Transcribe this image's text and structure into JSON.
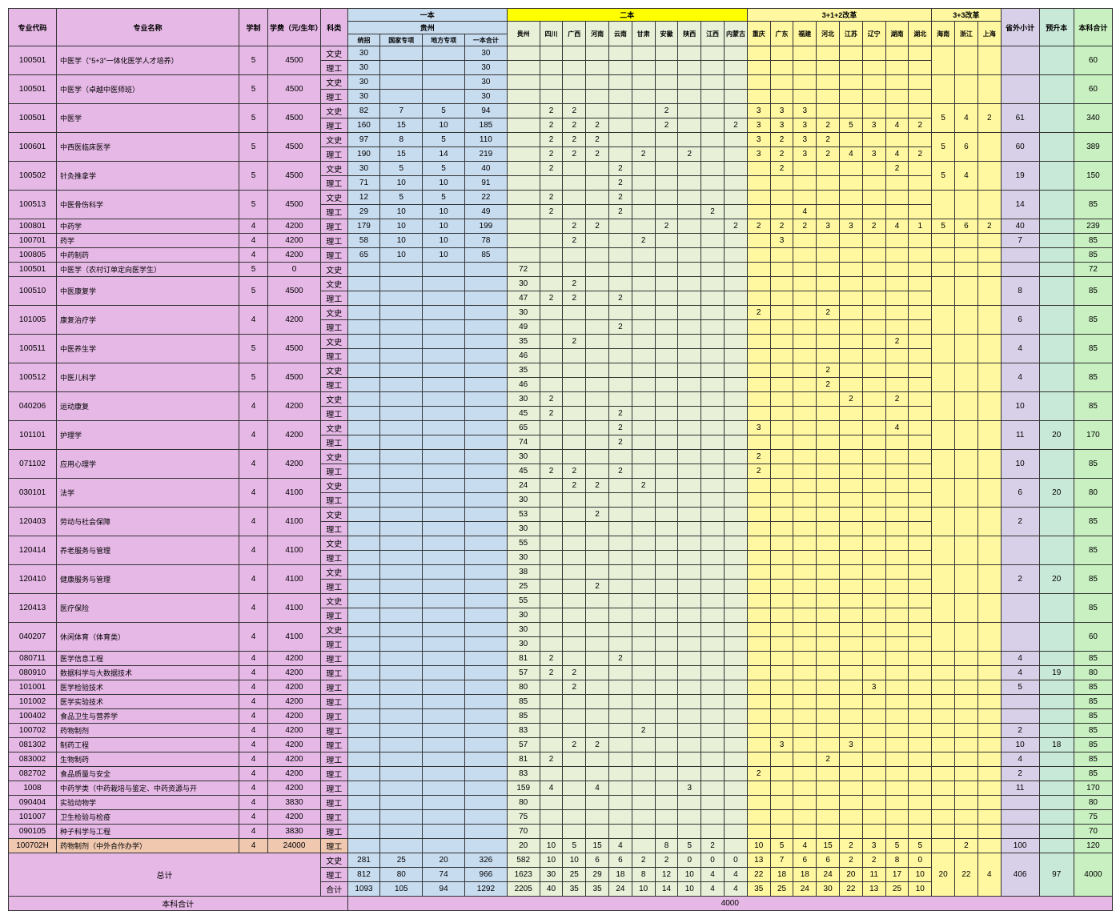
{
  "hdr": {
    "code": "专业代码",
    "name": "专业名称",
    "years": "学制",
    "fee": "学费（元/生年）",
    "sci": "科类",
    "g1": "一本",
    "g1gz": "贵州",
    "g1a": "统招",
    "g1b": "国家专项",
    "g1c": "地方专项",
    "g1d": "一本合计",
    "g2": "二本",
    "p1": "贵州",
    "p2": "四川",
    "p3": "广西",
    "p4": "河南",
    "p5": "云南",
    "p6": "甘肃",
    "p7": "安徽",
    "p8": "陕西",
    "p9": "江西",
    "p10": "内蒙古",
    "g3": "3+1+2改革",
    "r1": "重庆",
    "r2": "广东",
    "r3": "福建",
    "r4": "河北",
    "r5": "江苏",
    "r6": "辽宁",
    "r7": "湖南",
    "r8": "湖北",
    "g4": "3+3改革",
    "q1": "海南",
    "q2": "浙江",
    "q3": "上海",
    "subext": "省外小计",
    "upgrade": "预升本",
    "total": "本科合计",
    "wen": "文史",
    "li": "理工",
    "hj": "合计",
    "sum": "总计",
    "grand": "本科合计",
    "grandval": "4000"
  },
  "rows": [
    {
      "code": "100501",
      "name": "中医学（\"5+3\"一体化医学人才培养）",
      "yr": "5",
      "fee": "4500",
      "w": {
        "a": "30",
        "d": "30"
      },
      "l": {
        "a": "30",
        "d": "30"
      },
      "tot": "60"
    },
    {
      "code": "100501",
      "name": "中医学（卓越中医师班）",
      "yr": "5",
      "fee": "4500",
      "w": {
        "a": "30",
        "d": "30"
      },
      "l": {
        "a": "30",
        "d": "30"
      },
      "tot": "60"
    },
    {
      "code": "100501",
      "name": "中医学",
      "yr": "5",
      "fee": "4500",
      "w": {
        "a": "82",
        "b": "7",
        "c": "5",
        "d": "94",
        "p2": "2",
        "p3": "2",
        "p7": "2",
        "r1": "3",
        "r2": "3",
        "r3": "3"
      },
      "l": {
        "a": "160",
        "b": "15",
        "c": "10",
        "d": "185",
        "p2": "2",
        "p3": "2",
        "p4": "2",
        "p7": "2",
        "p10": "2",
        "r1": "3",
        "r2": "3",
        "r3": "3",
        "r4": "2",
        "r5": "5",
        "r6": "3",
        "r7": "4",
        "r8": "2"
      },
      "q1": "5",
      "q2": "4",
      "q3": "2",
      "sub": "61",
      "tot": "340"
    },
    {
      "code": "100601",
      "name": "中西医临床医学",
      "yr": "5",
      "fee": "4500",
      "w": {
        "a": "97",
        "b": "8",
        "c": "5",
        "d": "110",
        "p2": "2",
        "p3": "2",
        "p4": "2",
        "r1": "3",
        "r2": "2",
        "r3": "3",
        "r4": "2"
      },
      "l": {
        "a": "190",
        "b": "15",
        "c": "14",
        "d": "219",
        "p2": "2",
        "p3": "2",
        "p4": "2",
        "p6": "2",
        "p8": "2",
        "r1": "3",
        "r2": "2",
        "r3": "3",
        "r4": "2",
        "r5": "4",
        "r6": "3",
        "r7": "4",
        "r8": "2"
      },
      "q1": "5",
      "q2": "6",
      "sub": "60",
      "tot": "389"
    },
    {
      "code": "100502",
      "name": "针灸推拿学",
      "yr": "5",
      "fee": "4500",
      "w": {
        "a": "30",
        "b": "5",
        "c": "5",
        "d": "40",
        "p2": "2",
        "p5": "2",
        "r2": "2",
        "r7": "2"
      },
      "l": {
        "a": "71",
        "b": "10",
        "c": "10",
        "d": "91",
        "p5": "2"
      },
      "q1": "5",
      "q2": "4",
      "sub": "19",
      "tot": "150"
    },
    {
      "code": "100513",
      "name": "中医骨伤科学",
      "yr": "5",
      "fee": "4500",
      "w": {
        "a": "12",
        "b": "5",
        "c": "5",
        "d": "22",
        "p2": "2",
        "p5": "2"
      },
      "l": {
        "a": "29",
        "b": "10",
        "c": "10",
        "d": "49",
        "p2": "2",
        "p5": "2",
        "p9": "2",
        "r3": "4"
      },
      "sub": "14",
      "tot": "85"
    },
    {
      "code": "100801",
      "name": "中药学",
      "yr": "4",
      "fee": "4200",
      "single": true,
      "l": {
        "a": "179",
        "b": "10",
        "c": "10",
        "d": "199",
        "p3": "2",
        "p4": "2",
        "p7": "2",
        "p10": "2",
        "r1": "2",
        "r2": "2",
        "r3": "2",
        "r4": "3",
        "r5": "3",
        "r6": "2",
        "r7": "4",
        "r8": "1"
      },
      "q1": "5",
      "q2": "6",
      "q3": "2",
      "sub": "40",
      "tot": "239"
    },
    {
      "code": "100701",
      "name": "药学",
      "yr": "4",
      "fee": "4200",
      "single": true,
      "l": {
        "a": "58",
        "b": "10",
        "c": "10",
        "d": "78",
        "p3": "2",
        "p6": "2",
        "r2": "3"
      },
      "sub": "7",
      "tot": "85"
    },
    {
      "code": "100805",
      "name": "中药制药",
      "yr": "4",
      "fee": "4200",
      "single": true,
      "l": {
        "a": "65",
        "b": "10",
        "c": "10",
        "d": "85"
      },
      "tot": "85"
    },
    {
      "code": "100501",
      "name": "中医学（农村订单定向医学生）",
      "yr": "5",
      "fee": "0",
      "single": true,
      "wen": true,
      "w": {
        "p1": "72"
      },
      "tot": "72"
    },
    {
      "code": "100510",
      "name": "中医康复学",
      "yr": "5",
      "fee": "4500",
      "w": {
        "p1": "30",
        "p3": "2"
      },
      "l": {
        "p1": "47",
        "p2": "2",
        "p3": "2",
        "p5": "2"
      },
      "sub": "8",
      "tot": "85"
    },
    {
      "code": "101005",
      "name": "康复治疗学",
      "yr": "4",
      "fee": "4200",
      "w": {
        "p1": "30",
        "r1": "2",
        "r4": "2"
      },
      "l": {
        "p1": "49",
        "p5": "2"
      },
      "sub": "6",
      "tot": "85"
    },
    {
      "code": "100511",
      "name": "中医养生学",
      "yr": "5",
      "fee": "4500",
      "w": {
        "p1": "35",
        "p3": "2",
        "r7": "2"
      },
      "l": {
        "p1": "46"
      },
      "sub": "4",
      "tot": "85"
    },
    {
      "code": "100512",
      "name": "中医儿科学",
      "yr": "5",
      "fee": "4500",
      "w": {
        "p1": "35",
        "r4": "2"
      },
      "l": {
        "p1": "46",
        "r4": "2"
      },
      "sub": "4",
      "tot": "85"
    },
    {
      "code": "040206",
      "name": "运动康复",
      "yr": "4",
      "fee": "4200",
      "w": {
        "p1": "30",
        "p2": "2",
        "r5": "2",
        "r7": "2"
      },
      "l": {
        "p1": "45",
        "p2": "2",
        "p5": "2"
      },
      "sub": "10",
      "tot": "85"
    },
    {
      "code": "101101",
      "name": "护理学",
      "yr": "4",
      "fee": "4200",
      "w": {
        "p1": "65",
        "p5": "2",
        "r1": "3",
        "r7": "4"
      },
      "l": {
        "p1": "74",
        "p5": "2"
      },
      "sub": "11",
      "up": "20",
      "tot": "170"
    },
    {
      "code": "071102",
      "name": "应用心理学",
      "yr": "4",
      "fee": "4200",
      "w": {
        "p1": "30",
        "r1": "2"
      },
      "l": {
        "p1": "45",
        "p2": "2",
        "p3": "2",
        "p5": "2",
        "r1": "2"
      },
      "sub": "10",
      "tot": "85"
    },
    {
      "code": "030101",
      "name": "法学",
      "yr": "4",
      "fee": "4100",
      "w": {
        "p1": "24",
        "p3": "2",
        "p4": "2",
        "p6": "2"
      },
      "l": {
        "p1": "30"
      },
      "sub": "6",
      "up": "20",
      "tot": "80"
    },
    {
      "code": "120403",
      "name": "劳动与社会保障",
      "yr": "4",
      "fee": "4100",
      "w": {
        "p1": "53",
        "p4": "2"
      },
      "l": {
        "p1": "30"
      },
      "sub": "2",
      "tot": "85"
    },
    {
      "code": "120414",
      "name": "养老服务与管理",
      "yr": "4",
      "fee": "4100",
      "w": {
        "p1": "55"
      },
      "l": {
        "p1": "30"
      },
      "tot": "85"
    },
    {
      "code": "120410",
      "name": "健康服务与管理",
      "yr": "4",
      "fee": "4100",
      "w": {
        "p1": "38"
      },
      "l": {
        "p1": "25",
        "p4": "2"
      },
      "sub": "2",
      "up": "20",
      "tot": "85"
    },
    {
      "code": "120413",
      "name": "医疗保险",
      "yr": "4",
      "fee": "4100",
      "w": {
        "p1": "55"
      },
      "l": {
        "p1": "30"
      },
      "tot": "85"
    },
    {
      "code": "040207",
      "name": "休闲体育（体育类）",
      "yr": "4",
      "fee": "4100",
      "w": {
        "p1": "30"
      },
      "l": {
        "p1": "30"
      },
      "tot": "60"
    },
    {
      "code": "080711",
      "name": "医学信息工程",
      "yr": "4",
      "fee": "4200",
      "single": true,
      "l": {
        "p1": "81",
        "p2": "2",
        "p5": "2"
      },
      "sub": "4",
      "tot": "85"
    },
    {
      "code": "080910",
      "name": "数据科学与大数据技术",
      "yr": "4",
      "fee": "4200",
      "single": true,
      "l": {
        "p1": "57",
        "p2": "2",
        "p3": "2"
      },
      "sub": "4",
      "up": "19",
      "tot": "80"
    },
    {
      "code": "101001",
      "name": "医学检验技术",
      "yr": "4",
      "fee": "4200",
      "single": true,
      "l": {
        "p1": "80",
        "p3": "2",
        "r6": "3"
      },
      "sub": "5",
      "tot": "85"
    },
    {
      "code": "101002",
      "name": "医学实验技术",
      "yr": "4",
      "fee": "4200",
      "single": true,
      "l": {
        "p1": "85"
      },
      "tot": "85"
    },
    {
      "code": "100402",
      "name": "食品卫生与营养学",
      "yr": "4",
      "fee": "4200",
      "single": true,
      "l": {
        "p1": "85"
      },
      "tot": "85"
    },
    {
      "code": "100702",
      "name": "药物制剂",
      "yr": "4",
      "fee": "4200",
      "single": true,
      "l": {
        "p1": "83",
        "p6": "2"
      },
      "sub": "2",
      "tot": "85"
    },
    {
      "code": "081302",
      "name": "制药工程",
      "yr": "4",
      "fee": "4200",
      "single": true,
      "l": {
        "p1": "57",
        "p3": "2",
        "p4": "2",
        "r2": "3",
        "r5": "3"
      },
      "sub": "10",
      "up": "18",
      "tot": "85"
    },
    {
      "code": "083002",
      "name": "生物制药",
      "yr": "4",
      "fee": "4200",
      "single": true,
      "l": {
        "p1": "81",
        "p2": "2",
        "r4": "2"
      },
      "sub": "4",
      "tot": "85"
    },
    {
      "code": "082702",
      "name": "食品质量与安全",
      "yr": "4",
      "fee": "4200",
      "single": true,
      "l": {
        "p1": "83",
        "r1": "2"
      },
      "sub": "2",
      "tot": "85"
    },
    {
      "code": "1008",
      "name": "中药学类（中药栽培与鉴定、中药资源与开",
      "yr": "4",
      "fee": "4200",
      "single": true,
      "l": {
        "p1": "159",
        "p2": "4",
        "p4": "4",
        "p8": "3"
      },
      "sub": "11",
      "tot": "170"
    },
    {
      "code": "090404",
      "name": "实验动物学",
      "yr": "4",
      "fee": "3830",
      "single": true,
      "l": {
        "p1": "80"
      },
      "tot": "80"
    },
    {
      "code": "101007",
      "name": "卫生检验与检疫",
      "yr": "4",
      "fee": "4200",
      "single": true,
      "l": {
        "p1": "75"
      },
      "tot": "75"
    },
    {
      "code": "090105",
      "name": "种子科学与工程",
      "yr": "4",
      "fee": "3830",
      "single": true,
      "l": {
        "p1": "70"
      },
      "tot": "70"
    },
    {
      "code": "100702H",
      "name": "药物制剂（中外合作办学）",
      "yr": "4",
      "fee": "24000",
      "single": true,
      "salmon": true,
      "l": {
        "p1": "20",
        "p2": "10",
        "p3": "5",
        "p4": "15",
        "p5": "4",
        "p7": "8",
        "p8": "5",
        "p9": "2",
        "r1": "10",
        "r2": "5",
        "r3": "4",
        "r4": "15",
        "r5": "2",
        "r6": "3",
        "r7": "5",
        "r8": "5"
      },
      "q2": "2",
      "sub": "100",
      "tot": "120"
    }
  ],
  "totals": {
    "w": {
      "a": "281",
      "b": "25",
      "c": "20",
      "d": "326",
      "p1": "582",
      "p2": "10",
      "p3": "10",
      "p4": "6",
      "p5": "6",
      "p6": "2",
      "p7": "2",
      "p8": "0",
      "p9": "0",
      "p10": "0",
      "r1": "13",
      "r2": "7",
      "r3": "6",
      "r4": "6",
      "r5": "2",
      "r6": "2",
      "r7": "8",
      "r8": "0"
    },
    "l": {
      "a": "812",
      "b": "80",
      "c": "74",
      "d": "966",
      "p1": "1623",
      "p2": "30",
      "p3": "25",
      "p4": "29",
      "p5": "18",
      "p6": "8",
      "p7": "12",
      "p8": "10",
      "p9": "4",
      "p10": "4",
      "r1": "22",
      "r2": "18",
      "r3": "18",
      "r4": "24",
      "r5": "20",
      "r6": "11",
      "r7": "17",
      "r8": "10"
    },
    "h": {
      "a": "1093",
      "b": "105",
      "c": "94",
      "d": "1292",
      "p1": "2205",
      "p2": "40",
      "p3": "35",
      "p4": "35",
      "p5": "24",
      "p6": "10",
      "p7": "14",
      "p8": "10",
      "p9": "4",
      "p10": "4",
      "r1": "35",
      "r2": "25",
      "r3": "24",
      "r4": "30",
      "r5": "22",
      "r6": "13",
      "r7": "25",
      "r8": "10"
    },
    "q1": "20",
    "q2": "22",
    "q3": "4",
    "sub": "406",
    "up": "97",
    "tot": "4000"
  }
}
